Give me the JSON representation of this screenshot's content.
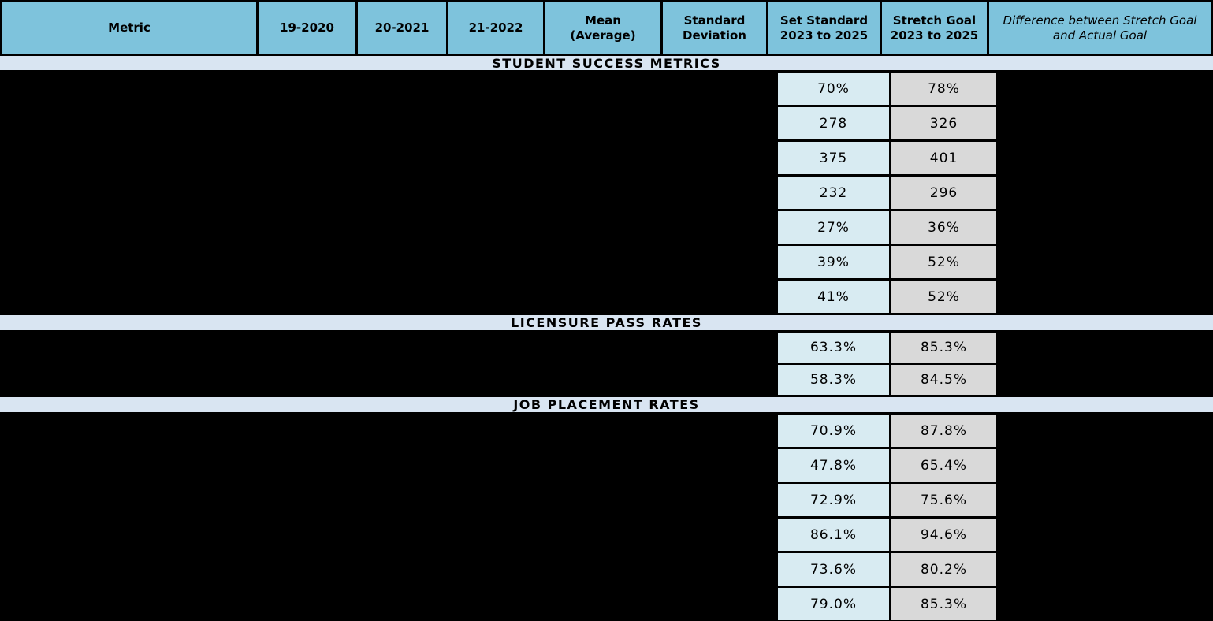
{
  "table": {
    "header": {
      "columns": [
        "Metric",
        "19-2020",
        "20-2021",
        "21-2022",
        "Mean (Average)",
        "Standard Deviation",
        "Set Standard 2023 to 2025",
        "Stretch Goal 2023 to 2025",
        "Difference between Stretch Goal and Actual Goal"
      ]
    },
    "sections": [
      {
        "title": "STUDENT SUCCESS METRICS",
        "rows": [
          {
            "set": "70%",
            "stretch": "78%"
          },
          {
            "set": "278",
            "stretch": "326"
          },
          {
            "set": "375",
            "stretch": "401"
          },
          {
            "set": "232",
            "stretch": "296"
          },
          {
            "set": "27%",
            "stretch": "36%"
          },
          {
            "set": "39%",
            "stretch": "52%"
          },
          {
            "set": "41%",
            "stretch": "52%"
          }
        ]
      },
      {
        "title": "LICENSURE PASS RATES",
        "rows": [
          {
            "set": "63.3%",
            "stretch": "85.3%"
          },
          {
            "set": "58.3%",
            "stretch": "84.5%"
          }
        ]
      },
      {
        "title": "JOB PLACEMENT RATES",
        "rows": [
          {
            "set": "70.9%",
            "stretch": "87.8%"
          },
          {
            "set": "47.8%",
            "stretch": "65.4%"
          },
          {
            "set": "72.9%",
            "stretch": "75.6%"
          },
          {
            "set": "86.1%",
            "stretch": "94.6%"
          },
          {
            "set": "73.6%",
            "stretch": "80.2%"
          },
          {
            "set": "79.0%",
            "stretch": "85.3%"
          }
        ]
      }
    ],
    "colors": {
      "header_bg": "#7EC3DC",
      "section_band_bg": "#D9E5F2",
      "set_standard_bg": "#D8EBF2",
      "stretch_goal_bg": "#D9D9D9",
      "redaction": "#000000"
    }
  }
}
